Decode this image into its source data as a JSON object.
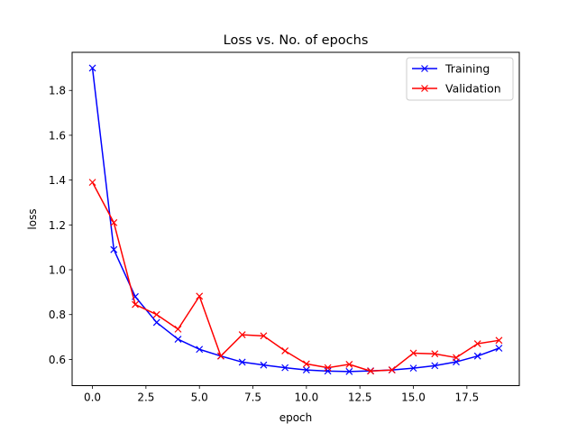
{
  "chart_data": {
    "type": "line",
    "title": "Loss vs. No. of epochs",
    "xlabel": "epoch",
    "ylabel": "loss",
    "xlim": [
      -0.95,
      19.95
    ],
    "ylim": [
      0.483,
      1.97
    ],
    "xticks": [
      0.0,
      2.5,
      5.0,
      7.5,
      10.0,
      12.5,
      15.0,
      17.5
    ],
    "xtick_labels": [
      "0.0",
      "2.5",
      "5.0",
      "7.5",
      "10.0",
      "12.5",
      "15.0",
      "17.5"
    ],
    "yticks": [
      0.6,
      0.8,
      1.0,
      1.2,
      1.4,
      1.6,
      1.8
    ],
    "ytick_labels": [
      "0.6",
      "0.8",
      "1.0",
      "1.2",
      "1.4",
      "1.6",
      "1.8"
    ],
    "grid": false,
    "legend_position": "top-right",
    "marker": "x",
    "x": [
      0,
      1,
      2,
      3,
      4,
      5,
      6,
      7,
      8,
      9,
      10,
      11,
      12,
      13,
      14,
      15,
      16,
      17,
      18,
      19
    ],
    "series": [
      {
        "name": "Training",
        "color": "#0000ff",
        "values": [
          1.9,
          1.09,
          0.88,
          0.765,
          0.69,
          0.645,
          0.615,
          0.588,
          0.575,
          0.563,
          0.553,
          0.548,
          0.546,
          0.549,
          0.553,
          0.561,
          0.572,
          0.589,
          0.615,
          0.65
        ]
      },
      {
        "name": "Validation",
        "color": "#ff0000",
        "values": [
          1.39,
          1.21,
          0.845,
          0.8,
          0.735,
          0.882,
          0.615,
          0.71,
          0.705,
          0.638,
          0.58,
          0.563,
          0.578,
          0.548,
          0.553,
          0.628,
          0.625,
          0.608,
          0.67,
          0.685
        ]
      }
    ]
  }
}
